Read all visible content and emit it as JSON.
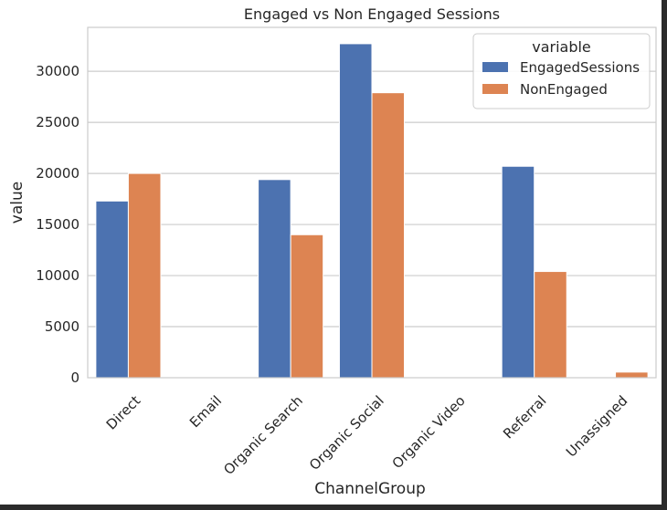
{
  "chart_data": {
    "type": "bar",
    "title": "Engaged vs Non Engaged Sessions",
    "xlabel": "ChannelGroup",
    "ylabel": "value",
    "categories": [
      "Direct",
      "Email",
      "Organic Search",
      "Organic Social",
      "Organic Video",
      "Referral",
      "Unassigned"
    ],
    "series": [
      {
        "name": "EngagedSessions",
        "color": "#4c72b0",
        "values": [
          17300,
          0,
          19400,
          32700,
          0,
          20700,
          0
        ]
      },
      {
        "name": "NonEngaged",
        "color": "#dd8452",
        "values": [
          20000,
          0,
          14000,
          27900,
          0,
          10400,
          550
        ]
      }
    ],
    "legend": {
      "title": "variable",
      "location": "top-right"
    },
    "yticks": [
      0,
      5000,
      10000,
      15000,
      20000,
      25000,
      30000
    ],
    "ylim": [
      0,
      34300
    ],
    "grid": "horizontal",
    "theme_colors": {
      "grid": "#cccccc",
      "text": "#262626",
      "plot_background": "#ffffff",
      "legend_border": "#cccccc"
    }
  }
}
